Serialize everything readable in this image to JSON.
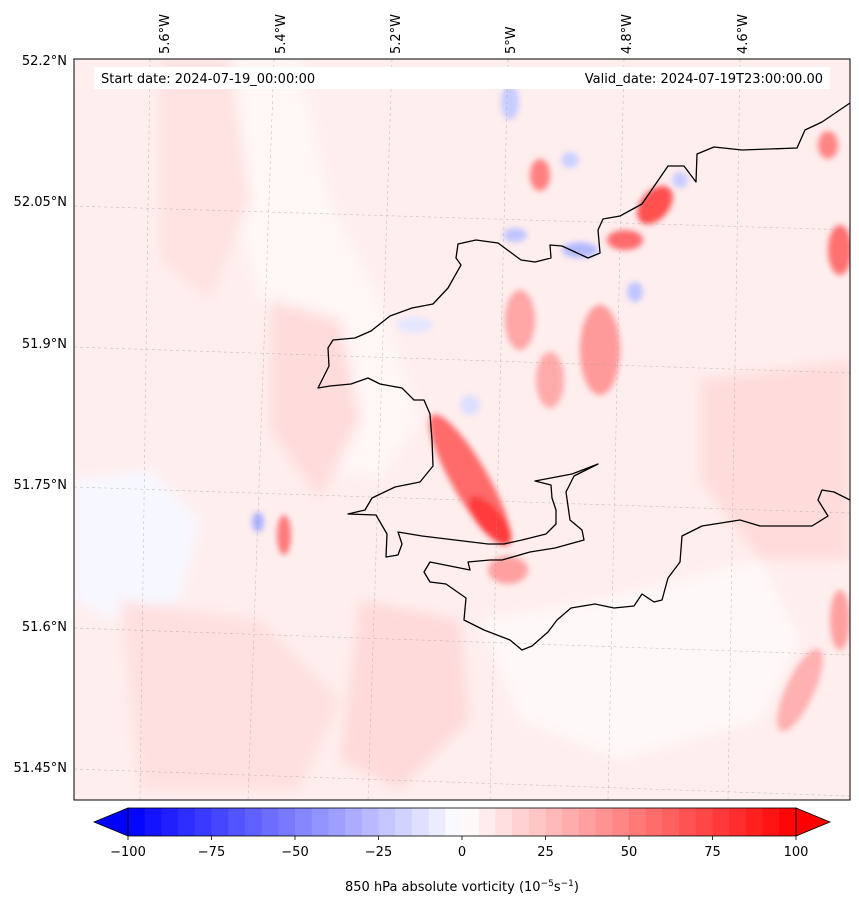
{
  "map": {
    "start_label": "Start date: 2024-07-19_00:00:00",
    "valid_label": "Valid_date: 2024-07-19T23:00:00.00",
    "lon_ticks": [
      "5.6°W",
      "5.4°W",
      "5.2°W",
      "5°W",
      "4.8°W",
      "4.6°W"
    ],
    "lat_ticks": [
      "52.2°N",
      "52.05°N",
      "51.9°N",
      "51.75°N",
      "51.6°N",
      "51.45°N"
    ],
    "colormap": "bwr",
    "colors": {
      "negative": "#0000ff",
      "neutral": "#ffffff",
      "positive": "#ff0000",
      "coast": "#000000"
    }
  },
  "colorbar": {
    "ticks": [
      "−100",
      "−75",
      "−50",
      "−25",
      "0",
      "25",
      "50",
      "75",
      "100"
    ],
    "label": "850 hPa absolute vorticity (10",
    "label_exp1": "−5",
    "label_mid": "s",
    "label_exp2": "−1",
    "label_end": ")",
    "range": [
      -100,
      100
    ],
    "levels": 41
  }
}
